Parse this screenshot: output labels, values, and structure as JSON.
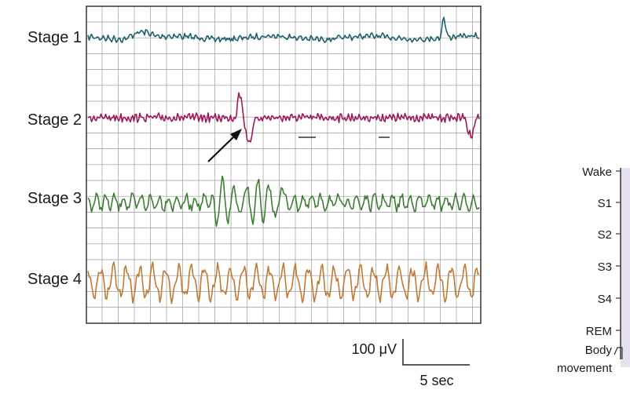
{
  "eeg_panel": {
    "stages": [
      {
        "label": "Stage 1",
        "color": "#1f5f6e"
      },
      {
        "label": "Stage 2",
        "color": "#9c1a5c"
      },
      {
        "label": "Stage 3",
        "color": "#3e7d34"
      },
      {
        "label": "Stage 4",
        "color": "#c07a35"
      }
    ],
    "grid_color": "#9a9a9a",
    "border_color": "#333333"
  },
  "scale_bar": {
    "amplitude_label": "100 μV",
    "time_label": "5 sec"
  },
  "hypnogram": {
    "levels": [
      "Wake",
      "S1",
      "S2",
      "S3",
      "S4",
      "REM"
    ],
    "body_movement_label_line1": "Body",
    "body_movement_label_line2": "movement",
    "panel_color": "#e6e0ef"
  }
}
